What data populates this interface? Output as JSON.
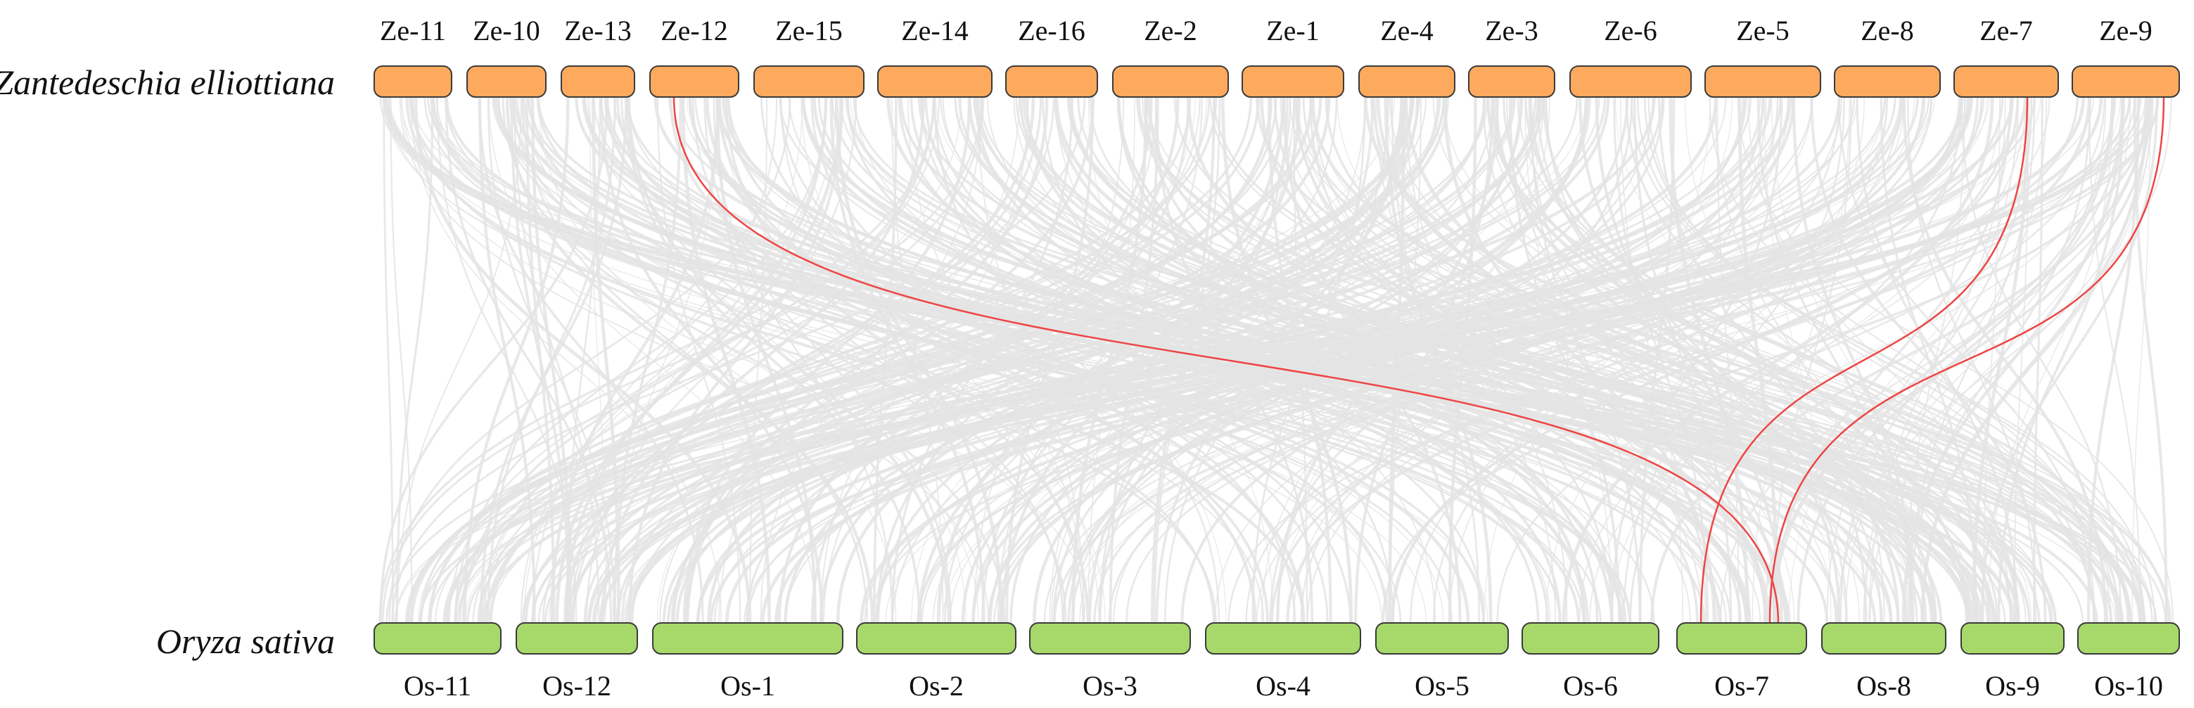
{
  "genomes": {
    "top": {
      "name": "Zantedeschia elliottiana",
      "color": "#FDAA5E",
      "stroke": "#3a3a3a",
      "chromosomes": [
        "Ze-11",
        "Ze-10",
        "Ze-13",
        "Ze-12",
        "Ze-15",
        "Ze-14",
        "Ze-16",
        "Ze-2",
        "Ze-1",
        "Ze-4",
        "Ze-3",
        "Ze-6",
        "Ze-5",
        "Ze-8",
        "Ze-7",
        "Ze-9"
      ]
    },
    "bottom": {
      "name": "Oryza sativa",
      "color": "#A6D96A",
      "stroke": "#3a3a3a",
      "chromosomes": [
        "Os-11",
        "Os-12",
        "Os-1",
        "Os-2",
        "Os-3",
        "Os-4",
        "Os-5",
        "Os-6",
        "Os-7",
        "Os-8",
        "Os-9",
        "Os-10"
      ]
    }
  },
  "links": {
    "background_color": "#E4E4E4",
    "highlight_color": "#EE4444",
    "highlighted": [
      {
        "from": "Ze-12",
        "to": "Os-7"
      },
      {
        "from": "Ze-7",
        "to": "Os-7"
      },
      {
        "from": "Ze-9",
        "to": "Os-7"
      }
    ]
  }
}
